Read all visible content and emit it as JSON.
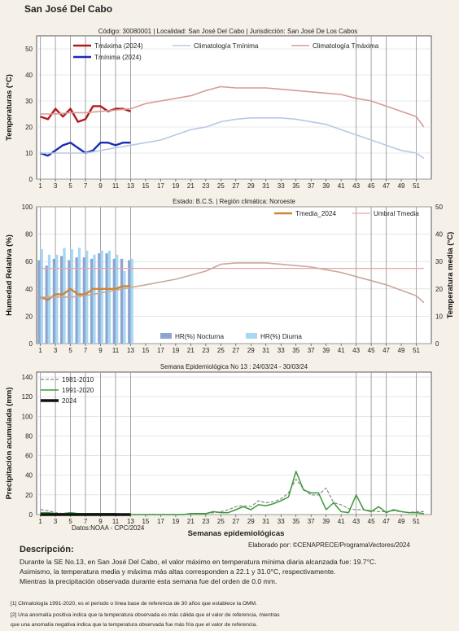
{
  "page_title": "San José Del Cabo",
  "meta_line": "Código: 30080001 | Localidad: San José Del Cabo | Jurisdicción: San José De Los Cabos",
  "credit": "Elaborado por: ©CENAPRECE/ProgramaVectores/2024",
  "source": "Datos:NOAA - CPC/2024",
  "description": {
    "title": "Descripción:",
    "line1": "Durante la SE No.13, en San José Del Cabo, el valor máximo en temperatura mínima diaria alcanzada fue: 19.7°C.",
    "line2": "Asimismo, la temperatura media y máxima más altas corresponden a 22.1 y 31.0°C, respectivamente.",
    "line3": "Mientras la precipitación observada durante esta semana fue del orden de 0.0 mm."
  },
  "notes": {
    "n1": "[1] Climatología 1991-2020, es el periodo o línea base de referencia de 30 años que establece la OMM.",
    "n2": "[2] Una anomalía positiva indica que la temperatura observada es más cálida que el valor de referencia, mientras",
    "n3": "que una anomalía negativa indica que la temperatura observada fue más fría que el valor de referencia."
  },
  "colors": {
    "tmax": "#b11b1b",
    "tmin": "#1a2db0",
    "clim_tmax": "#d89a9a",
    "clim_tmin": "#b7c8e6",
    "tmedia": "#c9873a",
    "umbral": "#e8a3a3",
    "clim_tmedia": "#c9a79b",
    "hr_noct": "#8ea4d2",
    "hr_diur": "#a6d8f2",
    "p1981": "#888888",
    "p1991": "#3a9a3a",
    "p2024": "#111111",
    "vline": "#9a9a9a"
  },
  "chart_data": [
    {
      "type": "line",
      "title": "",
      "ylabel": "Temperaturas (°C)",
      "ylim": [
        0,
        55
      ],
      "yticks": [
        0,
        10,
        20,
        30,
        40,
        50
      ],
      "xlim": [
        0.5,
        53
      ],
      "xticks": [
        1,
        3,
        5,
        7,
        9,
        11,
        13,
        15,
        17,
        19,
        21,
        23,
        25,
        27,
        29,
        31,
        33,
        35,
        37,
        39,
        41,
        43,
        45,
        47,
        49,
        51
      ],
      "vlines": [
        1,
        3,
        5,
        7,
        9,
        11,
        13,
        43,
        45,
        47,
        51
      ],
      "legend_position": "top",
      "grid": true,
      "series": [
        {
          "name": "Tmáxima (2024)",
          "color_key": "tmax",
          "width": 2.4,
          "x": [
            1,
            2,
            3,
            4,
            5,
            6,
            7,
            8,
            9,
            10,
            11,
            12,
            13
          ],
          "y": [
            24,
            23,
            27,
            24,
            27,
            22,
            23,
            28,
            28,
            26,
            27,
            27,
            26
          ]
        },
        {
          "name": "Tmínima (2024)",
          "color_key": "tmin",
          "width": 2.4,
          "x": [
            1,
            2,
            3,
            4,
            5,
            6,
            7,
            8,
            9,
            10,
            11,
            12,
            13
          ],
          "y": [
            10,
            9,
            11,
            13,
            14,
            12,
            10,
            11,
            14,
            14,
            13,
            14,
            14
          ]
        },
        {
          "name": "Climatología Tmínima",
          "color_key": "clim_tmin",
          "width": 1.6,
          "x": [
            1,
            3,
            5,
            7,
            9,
            11,
            13,
            15,
            17,
            19,
            21,
            23,
            25,
            27,
            29,
            31,
            33,
            35,
            37,
            39,
            41,
            43,
            45,
            47,
            49,
            51,
            52
          ],
          "y": [
            10,
            10,
            10,
            10,
            11,
            12,
            13,
            14,
            15,
            17,
            19,
            20,
            22,
            23,
            23.5,
            23.5,
            23.5,
            23,
            22,
            21,
            19,
            17,
            15,
            13,
            11,
            10,
            8
          ]
        },
        {
          "name": "Climatología Tmáxima",
          "color_key": "clim_tmax",
          "width": 1.6,
          "x": [
            1,
            3,
            5,
            7,
            9,
            11,
            13,
            15,
            17,
            19,
            21,
            23,
            25,
            27,
            29,
            31,
            33,
            35,
            37,
            39,
            41,
            43,
            45,
            47,
            49,
            51,
            52
          ],
          "y": [
            25,
            25,
            25.5,
            25.5,
            26,
            26.5,
            27,
            29,
            30,
            31,
            32,
            34,
            35.5,
            35,
            35,
            35,
            34.5,
            34,
            33.5,
            33,
            32.5,
            31,
            30,
            28,
            26,
            24,
            20
          ]
        }
      ]
    },
    {
      "type": "bar",
      "title": "Estado: B.C.S. | Región climática: Noroeste",
      "ylabel": "Humedad Relativa (%)",
      "y2label": "Temperatura media (°C)",
      "ylim": [
        0,
        100
      ],
      "yticks": [
        0,
        20,
        40,
        60,
        80,
        100
      ],
      "y2lim": [
        0,
        50
      ],
      "y2ticks": [
        0,
        10,
        20,
        30,
        40,
        50
      ],
      "xlim": [
        0.5,
        53
      ],
      "xticks": [
        1,
        3,
        5,
        7,
        9,
        11,
        13,
        15,
        17,
        19,
        21,
        23,
        25,
        27,
        29,
        31,
        33,
        35,
        37,
        39,
        41,
        43,
        45,
        47,
        49,
        51
      ],
      "vlines": [
        1,
        3,
        5,
        7,
        9,
        11,
        13,
        43,
        45,
        47,
        51
      ],
      "grid": true,
      "bar_series": [
        {
          "name": "HR(%) Nocturna",
          "color_key": "hr_noct",
          "x": [
            1,
            2,
            3,
            4,
            5,
            6,
            7,
            8,
            9,
            10,
            11,
            12,
            13
          ],
          "values": [
            61,
            57,
            62,
            64,
            61,
            63,
            63,
            62,
            66,
            66,
            62,
            62,
            61
          ]
        },
        {
          "name": "HR(%) Diurna",
          "color_key": "hr_diur",
          "x": [
            1,
            2,
            3,
            4,
            5,
            6,
            7,
            8,
            9,
            10,
            11,
            12,
            13
          ],
          "values": [
            69,
            65,
            65,
            70,
            69,
            70,
            68,
            65,
            68,
            68,
            65,
            53,
            62
          ]
        }
      ],
      "series": [
        {
          "name": "Tmedia_2024",
          "color_key": "tmedia",
          "width": 2.4,
          "x": [
            1,
            2,
            3,
            4,
            5,
            6,
            7,
            8,
            9,
            10,
            11,
            12,
            13
          ],
          "y": [
            17,
            16,
            18,
            18,
            20,
            18,
            18,
            20,
            20,
            20,
            20,
            21,
            21
          ]
        },
        {
          "name": "Umbral Tmedia",
          "color_key": "umbral",
          "width": 1.2,
          "x": [
            1,
            52
          ],
          "y": [
            27.5,
            27.5
          ]
        },
        {
          "name": "",
          "color_key": "clim_tmedia",
          "width": 1.6,
          "x": [
            1,
            3,
            5,
            7,
            9,
            11,
            13,
            15,
            17,
            19,
            21,
            23,
            25,
            27,
            29,
            31,
            33,
            35,
            37,
            39,
            41,
            43,
            45,
            47,
            49,
            51,
            52
          ],
          "y": [
            17,
            17,
            17,
            17.5,
            18.5,
            19.5,
            20.5,
            21.5,
            22.5,
            23.5,
            25,
            26.5,
            29,
            29.5,
            29.5,
            29.5,
            29,
            28.5,
            28,
            27,
            26,
            24.5,
            23,
            21.5,
            19.5,
            17.5,
            15
          ]
        }
      ]
    },
    {
      "type": "line",
      "title": "Semana Epidemiológica No 13 : 24/03/24 - 30/03/24",
      "ylabel": "Precipitación acumulada (mm)",
      "xlabel": "Semanas epidemiológicas",
      "ylim": [
        0,
        145
      ],
      "yticks": [
        0,
        20,
        40,
        60,
        80,
        100,
        120,
        140
      ],
      "xlim": [
        0.5,
        53
      ],
      "xticks": [
        1,
        3,
        5,
        7,
        9,
        11,
        13,
        15,
        17,
        19,
        21,
        23,
        25,
        27,
        29,
        31,
        33,
        35,
        37,
        39,
        41,
        43,
        45,
        47,
        49,
        51
      ],
      "vlines": [
        1,
        3,
        5,
        7,
        9,
        11,
        13,
        43,
        45,
        47,
        51
      ],
      "grid": true,
      "legend_position": "top-left",
      "series": [
        {
          "name": "1981-2010",
          "color_key": "p1981",
          "width": 1.2,
          "dash": "4,2",
          "x": [
            1,
            2,
            3,
            4,
            5,
            6,
            7,
            8,
            9,
            10,
            11,
            12,
            13,
            14,
            15,
            16,
            17,
            18,
            19,
            20,
            21,
            22,
            23,
            24,
            25,
            26,
            27,
            28,
            29,
            30,
            31,
            32,
            33,
            34,
            35,
            36,
            37,
            38,
            39,
            40,
            41,
            42,
            43,
            44,
            45,
            46,
            47,
            48,
            49,
            50,
            51,
            52
          ],
          "y": [
            5,
            4,
            2,
            1,
            1,
            1,
            1,
            1,
            1,
            1,
            1,
            0,
            0,
            0,
            0,
            0,
            0,
            0,
            0,
            0,
            1,
            1,
            1,
            2,
            3,
            5,
            8,
            9,
            8,
            14,
            12,
            13,
            16,
            22,
            36,
            26,
            20,
            20,
            27,
            12,
            10,
            6,
            5,
            5,
            4,
            3,
            3,
            4,
            3,
            2,
            3,
            3
          ]
        },
        {
          "name": "1991-2020",
          "color_key": "p1991",
          "width": 1.5,
          "x": [
            1,
            2,
            3,
            4,
            5,
            6,
            7,
            8,
            9,
            10,
            11,
            12,
            13,
            14,
            15,
            16,
            17,
            18,
            19,
            20,
            21,
            22,
            23,
            24,
            25,
            26,
            27,
            28,
            29,
            30,
            31,
            32,
            33,
            34,
            35,
            36,
            37,
            38,
            39,
            40,
            41,
            42,
            43,
            44,
            45,
            46,
            47,
            48,
            49,
            50,
            51,
            52
          ],
          "y": [
            2,
            2,
            1,
            1,
            2,
            1,
            1,
            1,
            1,
            1,
            1,
            0,
            0,
            0,
            0,
            0,
            0,
            0,
            0,
            0,
            1,
            1,
            1,
            3,
            2,
            2,
            5,
            8,
            5,
            10,
            9,
            11,
            14,
            18,
            44,
            25,
            22,
            22,
            5,
            12,
            3,
            2,
            20,
            5,
            3,
            8,
            2,
            5,
            3,
            2,
            2,
            1
          ]
        },
        {
          "name": "2024",
          "color_key": "p2024",
          "width": 3.5,
          "x": [
            1,
            2,
            3,
            4,
            5,
            6,
            7,
            8,
            9,
            10,
            11,
            12,
            13
          ],
          "y": [
            0,
            0,
            0,
            0,
            0,
            0,
            0,
            0,
            0,
            0,
            0,
            0,
            0
          ]
        }
      ]
    }
  ]
}
